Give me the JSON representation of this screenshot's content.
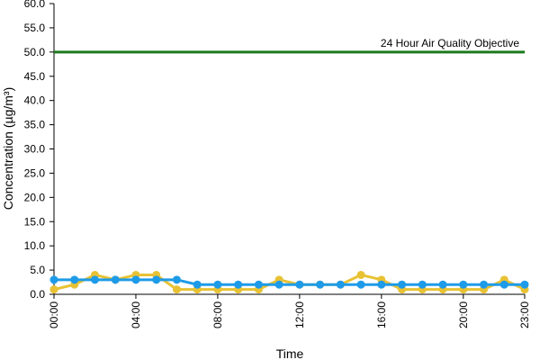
{
  "chart_data": {
    "type": "line",
    "x_label": "Time",
    "y_label": "Concentration (µg/m³)",
    "categories": [
      "00:00",
      null,
      null,
      null,
      "04:00",
      null,
      null,
      null,
      "08:00",
      null,
      null,
      null,
      "12:00",
      null,
      null,
      null,
      "16:00",
      null,
      null,
      null,
      "20:00",
      null,
      null,
      "23:00"
    ],
    "series": [
      {
        "color": "#e8c234",
        "values": [
          1,
          2,
          4,
          3,
          4,
          4,
          1,
          1,
          1,
          1,
          1,
          3,
          2,
          2,
          2,
          4,
          3,
          1,
          1,
          1,
          1,
          1,
          3,
          1
        ]
      },
      {
        "color": "#1e9be8",
        "values": [
          3,
          3,
          3,
          3,
          3,
          3,
          3,
          2,
          2,
          2,
          2,
          2,
          2,
          2,
          2,
          2,
          2,
          2,
          2,
          2,
          2,
          2,
          2,
          2
        ]
      }
    ],
    "reference_line": {
      "value": 50,
      "label": "24 Hour Air Quality Objective",
      "color": "#1a7a1a"
    },
    "ylim": [
      0,
      60
    ],
    "yticks": [
      {
        "value": 0,
        "label": "0.0"
      },
      {
        "value": 5,
        "label": "5.0"
      },
      {
        "value": 10,
        "label": "10.0"
      },
      {
        "value": 15,
        "label": "15.0"
      },
      {
        "value": 20,
        "label": "20.0"
      },
      {
        "value": 25,
        "label": "25.0"
      },
      {
        "value": 30,
        "label": "30.0"
      },
      {
        "value": 35,
        "label": "35.0"
      },
      {
        "value": 40,
        "label": "40.0"
      },
      {
        "value": 45,
        "label": "45.0"
      },
      {
        "value": 50,
        "label": "50.0"
      },
      {
        "value": 55,
        "label": "55.0"
      },
      {
        "value": 60,
        "label": "60.0"
      }
    ]
  }
}
